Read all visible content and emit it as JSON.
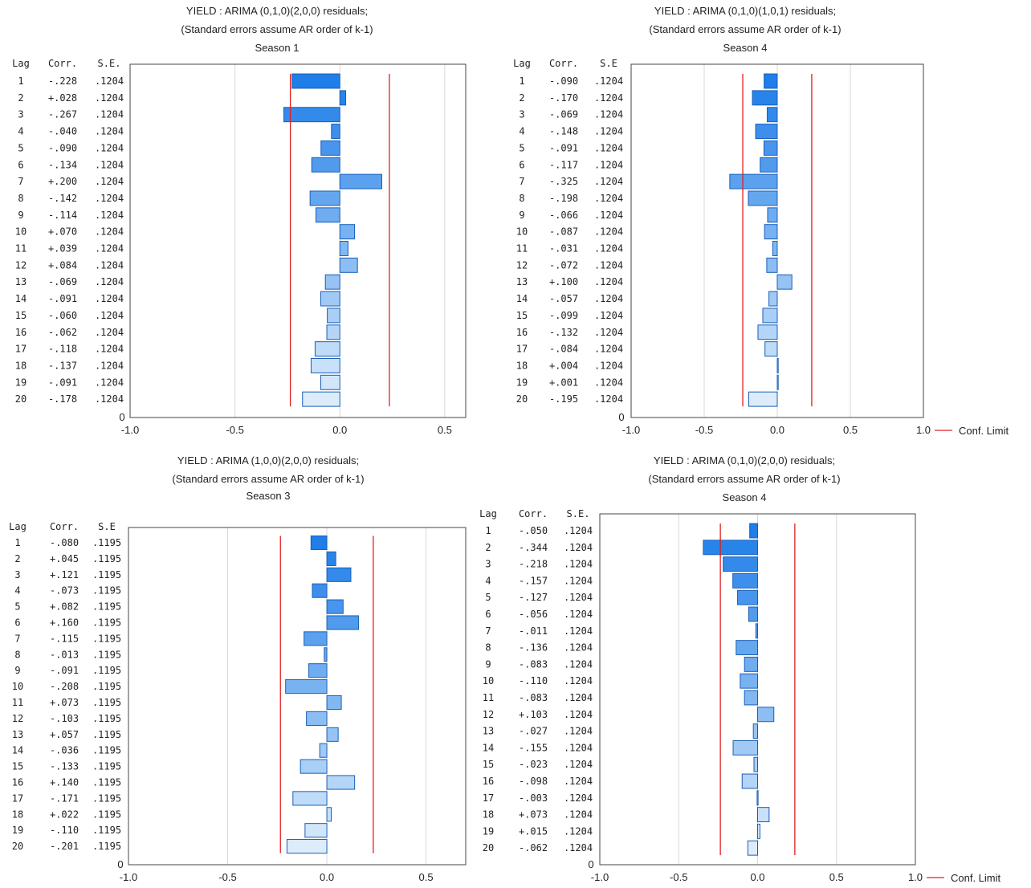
{
  "chart_data": [
    {
      "type": "bar",
      "orientation": "horizontal",
      "title": "YIELD    : ARIMA (0,1,0)(2,0,0) residuals;",
      "subtitle": "(Standard errors assume AR order of k-1)",
      "season": "Season 1",
      "headers": {
        "lag": "Lag",
        "corr": "Corr.",
        "se": "S.E."
      },
      "lags": [
        "1",
        "2",
        "3",
        "4",
        "5",
        "6",
        "7",
        "8",
        "9",
        "10",
        "11",
        "12",
        "13",
        "14",
        "15",
        "16",
        "17",
        "18",
        "19",
        "20"
      ],
      "corr_labels": [
        "-.228",
        "+.028",
        "-.267",
        "-.040",
        "-.090",
        "-.134",
        "+.200",
        "-.142",
        "-.114",
        "+.070",
        "+.039",
        "+.084",
        "-.069",
        "-.091",
        "-.060",
        "-.062",
        "-.118",
        "-.137",
        "-.091",
        "-.178"
      ],
      "values": [
        -0.228,
        0.028,
        -0.267,
        -0.04,
        -0.09,
        -0.134,
        0.2,
        -0.142,
        -0.114,
        0.07,
        0.039,
        0.084,
        -0.069,
        -0.091,
        -0.06,
        -0.062,
        -0.118,
        -0.137,
        -0.091,
        -0.178
      ],
      "se_labels": [
        ".1204",
        ".1204",
        ".1204",
        ".1204",
        ".1204",
        ".1204",
        ".1204",
        ".1204",
        ".1204",
        ".1204",
        ".1204",
        ".1204",
        ".1204",
        ".1204",
        ".1204",
        ".1204",
        ".1204",
        ".1204",
        ".1204",
        ".1204"
      ],
      "conf_limit": 0.236,
      "xlim": [
        -1.0,
        0.6
      ],
      "xticks": [
        "-1.0",
        "-0.5",
        "0.0",
        "0.5"
      ],
      "zero_label": "0",
      "legend": ""
    },
    {
      "type": "bar",
      "orientation": "horizontal",
      "title": "YIELD    : ARIMA (0,1,0)(1,0,1) residuals;",
      "subtitle": "(Standard errors assume AR order of k-1)",
      "season": "Season 4",
      "headers": {
        "lag": "Lag",
        "corr": "Corr.",
        "se": "S.E"
      },
      "lags": [
        "1",
        "2",
        "3",
        "4",
        "5",
        "6",
        "7",
        "8",
        "9",
        "10",
        "11",
        "12",
        "13",
        "14",
        "15",
        "16",
        "17",
        "18",
        "19",
        "20"
      ],
      "corr_labels": [
        "-.090",
        "-.170",
        "-.069",
        "-.148",
        "-.091",
        "-.117",
        "-.325",
        "-.198",
        "-.066",
        "-.087",
        "-.031",
        "-.072",
        "+.100",
        "-.057",
        "-.099",
        "-.132",
        "-.084",
        "+.004",
        "+.001",
        "-.195"
      ],
      "values": [
        -0.09,
        -0.17,
        -0.069,
        -0.148,
        -0.091,
        -0.117,
        -0.325,
        -0.198,
        -0.066,
        -0.087,
        -0.031,
        -0.072,
        0.1,
        -0.057,
        -0.099,
        -0.132,
        -0.084,
        0.004,
        0.001,
        -0.195
      ],
      "se_labels": [
        ".1204",
        ".1204",
        ".1204",
        ".1204",
        ".1204",
        ".1204",
        ".1204",
        ".1204",
        ".1204",
        ".1204",
        ".1204",
        ".1204",
        ".1204",
        ".1204",
        ".1204",
        ".1204",
        ".1204",
        ".1204",
        ".1204",
        ".1204"
      ],
      "conf_limit": 0.236,
      "xlim": [
        -1.0,
        1.0
      ],
      "xticks": [
        "-1.0",
        "-0.5",
        "0.0",
        "0.5",
        "1.0"
      ],
      "zero_label": "0",
      "legend": "Conf. Limit"
    },
    {
      "type": "bar",
      "orientation": "horizontal",
      "title": "YIELD    : ARIMA (1,0,0)(2,0,0) residuals;",
      "subtitle": "(Standard errors assume AR order of k-1)",
      "season": "Season 3",
      "headers": {
        "lag": "Lag",
        "corr": "Corr.",
        "se": "S.E"
      },
      "lags": [
        "1",
        "2",
        "3",
        "4",
        "5",
        "6",
        "7",
        "8",
        "9",
        "10",
        "11",
        "12",
        "13",
        "14",
        "15",
        "16",
        "17",
        "18",
        "19",
        "20"
      ],
      "corr_labels": [
        "-.080",
        "+.045",
        "+.121",
        "-.073",
        "+.082",
        "+.160",
        "-.115",
        "-.013",
        "-.091",
        "-.208",
        "+.073",
        "-.103",
        "+.057",
        "-.036",
        "-.133",
        "+.140",
        "-.171",
        "+.022",
        "-.110",
        "-.201"
      ],
      "values": [
        -0.08,
        0.045,
        0.121,
        -0.073,
        0.082,
        0.16,
        -0.115,
        -0.013,
        -0.091,
        -0.208,
        0.073,
        -0.103,
        0.057,
        -0.036,
        -0.133,
        0.14,
        -0.171,
        0.022,
        -0.11,
        -0.201
      ],
      "se_labels": [
        ".1195",
        ".1195",
        ".1195",
        ".1195",
        ".1195",
        ".1195",
        ".1195",
        ".1195",
        ".1195",
        ".1195",
        ".1195",
        ".1195",
        ".1195",
        ".1195",
        ".1195",
        ".1195",
        ".1195",
        ".1195",
        ".1195",
        ".1195"
      ],
      "conf_limit": 0.234,
      "xlim": [
        -1.0,
        0.7
      ],
      "xticks": [
        "-1.0",
        "-0.5",
        "0.0",
        "0.5"
      ],
      "zero_label": "0",
      "legend": ""
    },
    {
      "type": "bar",
      "orientation": "horizontal",
      "title": "YIELD    : ARIMA (0,1,0)(2,0,0) residuals;",
      "subtitle": "(Standard errors assume AR order of k-1)",
      "season": "Season 4",
      "headers": {
        "lag": "Lag",
        "corr": "Corr.",
        "se": "S.E."
      },
      "lags": [
        "1",
        "2",
        "3",
        "4",
        "5",
        "6",
        "7",
        "8",
        "9",
        "10",
        "11",
        "12",
        "13",
        "14",
        "15",
        "16",
        "17",
        "18",
        "19",
        "20"
      ],
      "corr_labels": [
        "-.050",
        "-.344",
        "-.218",
        "-.157",
        "-.127",
        "-.056",
        "-.011",
        "-.136",
        "-.083",
        "-.110",
        "-.083",
        "+.103",
        "-.027",
        "-.155",
        "-.023",
        "-.098",
        "-.003",
        "+.073",
        "+.015",
        "-.062"
      ],
      "values": [
        -0.05,
        -0.344,
        -0.218,
        -0.157,
        -0.127,
        -0.056,
        -0.011,
        -0.136,
        -0.083,
        -0.11,
        -0.083,
        0.103,
        -0.027,
        -0.155,
        -0.023,
        -0.098,
        -0.003,
        0.073,
        0.015,
        -0.062
      ],
      "se_labels": [
        ".1204",
        ".1204",
        ".1204",
        ".1204",
        ".1204",
        ".1204",
        ".1204",
        ".1204",
        ".1204",
        ".1204",
        ".1204",
        ".1204",
        ".1204",
        ".1204",
        ".1204",
        ".1204",
        ".1204",
        ".1204",
        ".1204",
        ".1204"
      ],
      "conf_limit": 0.236,
      "xlim": [
        -1.0,
        1.0
      ],
      "xticks": [
        "-1.0",
        "-0.5",
        "0.0",
        "0.5",
        "1.0"
      ],
      "zero_label": "0",
      "legend": "Conf. Limit"
    }
  ],
  "colors": {
    "bar_dark": "#1f7ee8",
    "bar_light": "#dcecfb",
    "bar_stroke": "#1a5fb8",
    "conf_limit": "#e02020",
    "grid": "#d8d8d8",
    "frame": "#444444"
  }
}
